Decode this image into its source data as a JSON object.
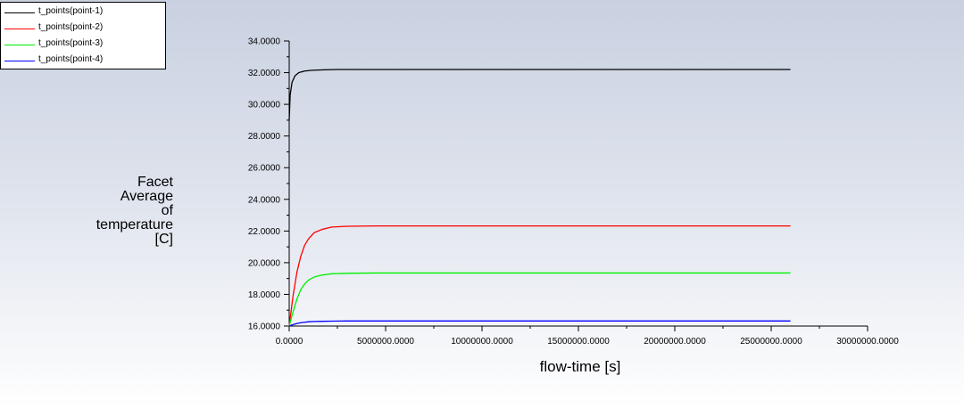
{
  "chart_data": {
    "type": "line",
    "title": "",
    "xlabel": "flow-time [s]",
    "ylabel_lines": [
      "Facet",
      "Average",
      "of",
      "temperature",
      "[C]"
    ],
    "xlim": [
      0,
      30000000
    ],
    "ylim": [
      16,
      34
    ],
    "x_ticks": [
      0,
      5000000,
      10000000,
      15000000,
      20000000,
      25000000,
      30000000
    ],
    "x_tick_labels": [
      "0.0000",
      "5000000.0000",
      "10000000.0000",
      "15000000.0000",
      "20000000.0000",
      "25000000.0000",
      "30000000.0000"
    ],
    "y_ticks": [
      16,
      18,
      20,
      22,
      24,
      26,
      28,
      30,
      32,
      34
    ],
    "y_tick_labels": [
      "16.0000",
      "18.0000",
      "20.0000",
      "22.0000",
      "24.0000",
      "26.0000",
      "28.0000",
      "30.0000",
      "32.0000",
      "34.0000"
    ],
    "legend_placement": "top-left",
    "grid": false,
    "series": [
      {
        "name": "t_points(point-1)",
        "color": "#000000",
        "x": [
          0,
          50000,
          150000,
          300000,
          500000,
          800000,
          1200000,
          1800000,
          2500000,
          4000000,
          8000000,
          15000000,
          26000000
        ],
        "y": [
          29.0,
          30.6,
          31.4,
          31.8,
          32.0,
          32.1,
          32.15,
          32.18,
          32.2,
          32.2,
          32.2,
          32.2,
          32.2
        ]
      },
      {
        "name": "t_points(point-2)",
        "color": "#ff0000",
        "x": [
          0,
          200000,
          400000,
          600000,
          800000,
          1000000,
          1300000,
          1700000,
          2200000,
          3000000,
          4500000,
          8000000,
          15000000,
          26000000
        ],
        "y": [
          16.0,
          17.9,
          19.4,
          20.4,
          21.1,
          21.5,
          21.9,
          22.1,
          22.25,
          22.3,
          22.32,
          22.32,
          22.32,
          22.32
        ],
        "_note": ""
      },
      {
        "name": "t_points(point-3)",
        "color": "#00ee00",
        "x": [
          0,
          200000,
          400000,
          600000,
          800000,
          1000000,
          1300000,
          1700000,
          2200000,
          3000000,
          4500000,
          8000000,
          15000000,
          26000000
        ],
        "y": [
          16.0,
          16.9,
          17.7,
          18.3,
          18.65,
          18.9,
          19.1,
          19.22,
          19.3,
          19.33,
          19.35,
          19.35,
          19.35,
          19.35
        ]
      },
      {
        "name": "t_points(point-4)",
        "color": "#0000ff",
        "x": [
          0,
          200000,
          400000,
          600000,
          800000,
          1000000,
          1300000,
          1700000,
          2200000,
          3000000,
          4500000,
          8000000,
          15000000,
          26000000
        ],
        "y": [
          16.0,
          16.09,
          16.16,
          16.21,
          16.24,
          16.27,
          16.29,
          16.3,
          16.31,
          16.32,
          16.32,
          16.32,
          16.32,
          16.32
        ]
      }
    ]
  }
}
